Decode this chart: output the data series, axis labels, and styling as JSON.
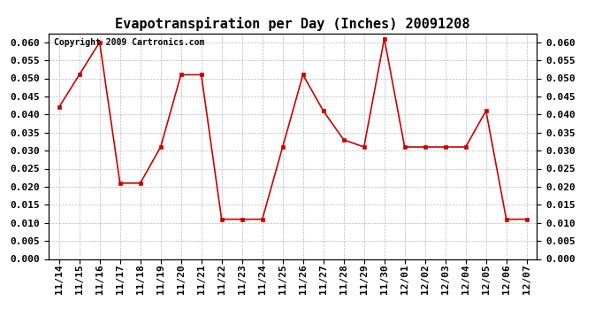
{
  "title": "Evapotranspiration per Day (Inches) 20091208",
  "copyright_text": "Copyright 2009 Cartronics.com",
  "x_labels": [
    "11/14",
    "11/15",
    "11/16",
    "11/17",
    "11/18",
    "11/19",
    "11/20",
    "11/21",
    "11/22",
    "11/23",
    "11/24",
    "11/25",
    "11/26",
    "11/27",
    "11/28",
    "11/29",
    "11/30",
    "12/01",
    "12/02",
    "12/03",
    "12/04",
    "12/05",
    "12/06",
    "12/07"
  ],
  "y_values": [
    0.042,
    0.051,
    0.06,
    0.021,
    0.021,
    0.031,
    0.051,
    0.051,
    0.011,
    0.011,
    0.011,
    0.031,
    0.051,
    0.041,
    0.033,
    0.031,
    0.061,
    0.031,
    0.031,
    0.031,
    0.031,
    0.041,
    0.011,
    0.011
  ],
  "line_color": "#cc0000",
  "marker": "s",
  "marker_size": 3,
  "ylim": [
    0.0,
    0.0625
  ],
  "yticks": [
    0.0,
    0.005,
    0.01,
    0.015,
    0.02,
    0.025,
    0.03,
    0.035,
    0.04,
    0.045,
    0.05,
    0.055,
    0.06
  ],
  "background_color": "#ffffff",
  "grid_color": "#bbbbbb",
  "title_fontsize": 11,
  "tick_fontsize": 8,
  "copyright_fontsize": 7
}
